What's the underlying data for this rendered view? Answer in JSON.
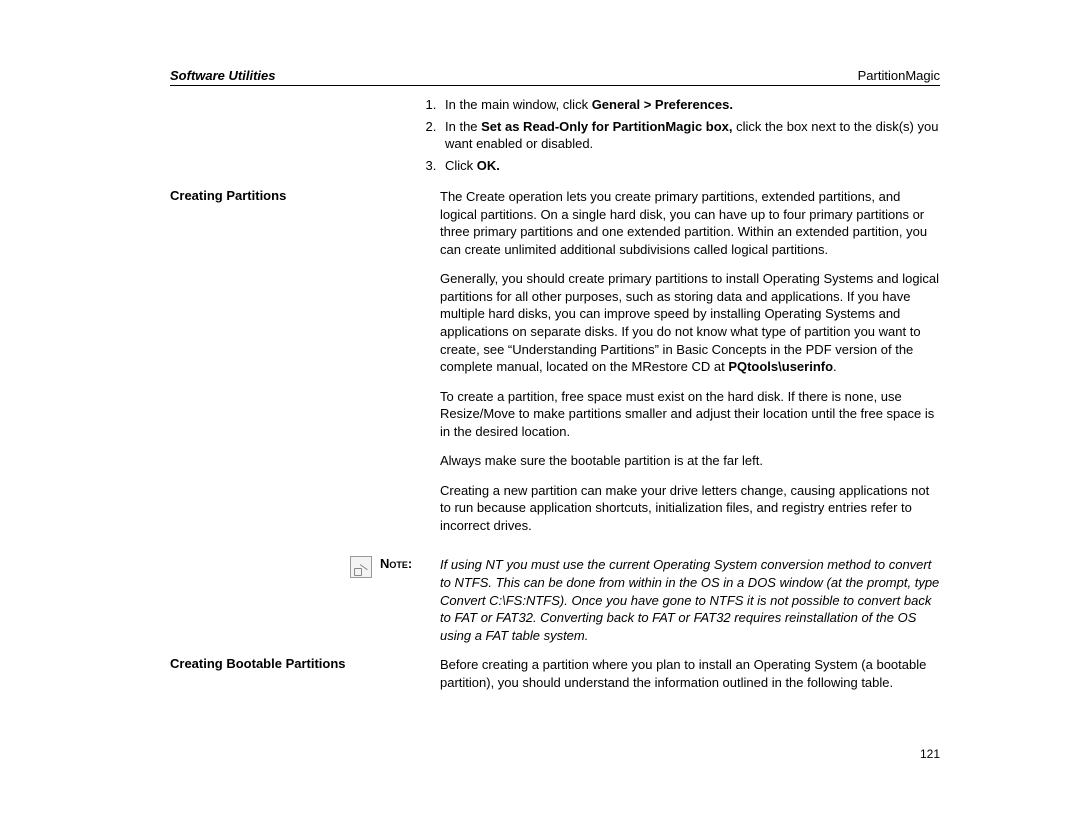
{
  "header": {
    "left": "Software Utilities",
    "right": "PartitionMagic"
  },
  "steps": {
    "s1_pre": "In the main window, click ",
    "s1_bold": "General > Preferences.",
    "s2_pre": "In the ",
    "s2_bold": "Set as Read-Only for PartitionMagic box,",
    "s2_post": " click the box next to the disk(s) you want enabled or disabled.",
    "s3_pre": "Click ",
    "s3_bold": "OK.",
    "s3_post": ""
  },
  "section1": {
    "title": "Creating Partitions",
    "p1": "The Create operation lets you create primary partitions, extended partitions, and logical partitions. On a single hard disk, you can have up to four primary partitions or three primary partitions and one extended partition. Within an extended partition, you can create unlimited additional subdivisions called logical partitions.",
    "p2_pre": "Generally, you should create primary partitions to install Operating Systems and logical partitions for all other purposes, such as storing data and applications. If you have multiple hard disks, you can improve speed by installing Operating Systems and applications on separate disks. If you do not know what type of partition you want to create, see “Understanding Partitions” in Basic Concepts in the PDF version of the complete manual, located on the MRestore CD at ",
    "p2_bold": "PQtools\\userinfo",
    "p2_post": ".",
    "p3": "To create a partition, free space must exist on the hard disk. If there is none, use Resize/Move to make partitions smaller and adjust their location until the free space is in the desired location.",
    "p4": "Always make sure the bootable partition is at the far left.",
    "p5": "Creating a new partition can make your drive letters change, causing applications not to run because application shortcuts, initialization files, and registry entries refer to incorrect drives."
  },
  "note": {
    "label": "Note:",
    "text": "If using NT you must use the current Operating System conversion method to convert to NTFS. This can be done from within in the OS in a DOS window (at the prompt, type Convert C:\\FS:NTFS). Once you have gone to NTFS it is not possible to convert back to FAT or FAT32. Converting back to FAT or FAT32 requires reinstallation of the OS using a FAT table system."
  },
  "section2": {
    "title": "Creating Bootable Partitions",
    "p1": "Before creating a partition where you plan to install an Operating System (a bootable partition), you should understand the information outlined in the following table."
  },
  "pageNumber": "121"
}
